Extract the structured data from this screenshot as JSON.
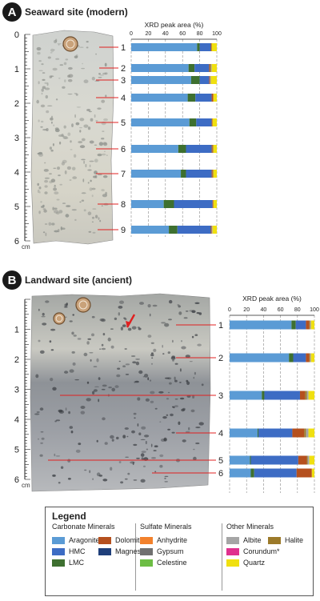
{
  "panel_a": {
    "badge": "A",
    "title": "Seaward site (modern)"
  },
  "panel_b": {
    "badge": "B",
    "title": "Landward site (ancient)"
  },
  "ruler": {
    "unit": "cm",
    "labels_a": [
      "0",
      "1",
      "2",
      "3",
      "4",
      "5",
      "6"
    ],
    "labels_b": [
      "1",
      "2",
      "3",
      "4",
      "5",
      "6"
    ]
  },
  "colors": {
    "Aragonite": "#5b9bd5",
    "HMC": "#3d6cc4",
    "LMC": "#3e7030",
    "Dolomite": "#b5501e",
    "Magnesite": "#1f3f7a",
    "Anhydrite": "#f2812c",
    "Gypsum": "#707070",
    "Celestine": "#6dbd45",
    "Albite": "#a5a5a5",
    "Halite": "#9c7a2a",
    "Corundum": "#e0308e",
    "Quartz": "#f0e010"
  },
  "chart_data": [
    {
      "type": "bar",
      "orientation": "horizontal-stacked",
      "title": "XRD peak area (%)",
      "panel": "Seaward site (modern)",
      "xlim": [
        0,
        100
      ],
      "xticks": [
        "0",
        "20",
        "40",
        "60",
        "80",
        "100"
      ],
      "categories": [
        "1",
        "2",
        "3",
        "4",
        "5",
        "6",
        "7",
        "8",
        "9"
      ],
      "series": [
        {
          "name": "Aragonite",
          "values": [
            77,
            67,
            70,
            66,
            68,
            55,
            58,
            38,
            44
          ]
        },
        {
          "name": "LMC",
          "values": [
            3,
            7,
            10,
            9,
            8,
            9,
            6,
            12,
            10
          ]
        },
        {
          "name": "HMC",
          "values": [
            13,
            17,
            11,
            19,
            18,
            30,
            30,
            45,
            39
          ]
        },
        {
          "name": "Magnesite",
          "values": [
            0,
            0,
            0,
            0,
            0,
            0,
            0,
            0,
            0
          ]
        },
        {
          "name": "Dolomite",
          "values": [
            1,
            1,
            1,
            2,
            1,
            1,
            1,
            1,
            1
          ]
        },
        {
          "name": "Halite",
          "values": [
            0,
            1,
            0,
            0,
            0,
            1,
            1,
            0,
            0
          ]
        },
        {
          "name": "Albite",
          "values": [
            0,
            1,
            1,
            0,
            0,
            0,
            0,
            0,
            1
          ]
        },
        {
          "name": "Quartz",
          "values": [
            6,
            6,
            7,
            4,
            5,
            4,
            4,
            4,
            5
          ]
        }
      ]
    },
    {
      "type": "bar",
      "orientation": "horizontal-stacked",
      "title": "XRD peak area (%)",
      "panel": "Landward site (ancient)",
      "xlim": [
        0,
        100
      ],
      "xticks": [
        "0",
        "20",
        "40",
        "60",
        "80",
        "100"
      ],
      "categories": [
        "1",
        "2",
        "3",
        "4",
        "5",
        "6"
      ],
      "series": [
        {
          "name": "Aragonite",
          "values": [
            73,
            70,
            38,
            33,
            24,
            25
          ]
        },
        {
          "name": "LMC",
          "values": [
            5,
            5,
            3,
            1,
            1,
            4
          ]
        },
        {
          "name": "HMC",
          "values": [
            12,
            15,
            42,
            40,
            56,
            50
          ]
        },
        {
          "name": "Magnesite",
          "values": [
            0,
            0,
            0,
            0,
            0,
            0
          ]
        },
        {
          "name": "Dolomite",
          "values": [
            4,
            4,
            6,
            14,
            10,
            18
          ]
        },
        {
          "name": "Halite",
          "values": [
            1,
            1,
            2,
            2,
            1,
            0
          ]
        },
        {
          "name": "Albite",
          "values": [
            1,
            1,
            2,
            3,
            2,
            0
          ]
        },
        {
          "name": "Quartz",
          "values": [
            4,
            4,
            7,
            7,
            6,
            3
          ]
        }
      ]
    }
  ],
  "legend": {
    "title": "Legend",
    "groups": [
      {
        "heading": "Carbonate Minerals",
        "items": [
          "Aragonite",
          "HMC",
          "LMC",
          "Dolomite",
          "Magnesite"
        ]
      },
      {
        "heading": "Sulfate Minerals",
        "items": [
          "Anhydrite",
          "Gypsum",
          "Celestine"
        ]
      },
      {
        "heading": "Other Minerals",
        "items": [
          "Albite",
          "Halite",
          "Corundum*",
          "Quartz"
        ]
      }
    ]
  }
}
